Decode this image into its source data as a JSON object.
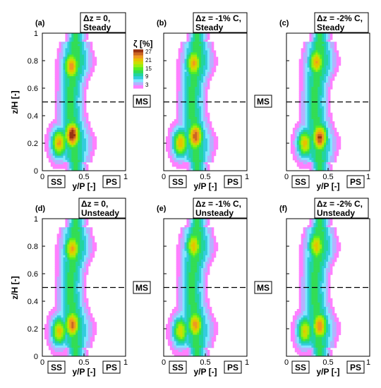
{
  "figure": {
    "y_axis_label": "z/H [-]",
    "x_axis_label": "y/P [-]",
    "ss_label": "SS",
    "ps_label": "PS",
    "ms_label": "MS"
  },
  "colorbar": {
    "title": "ζ [%]",
    "tick_labels": [
      "27",
      "21",
      "15",
      "9",
      "3"
    ]
  },
  "colors": {
    "levels": [
      "#ff80ff",
      "#b3b3ff",
      "#80e6ff",
      "#33ccdd",
      "#22d4a0",
      "#33dd55",
      "#55ee22",
      "#99ee11",
      "#ccdd00",
      "#e6c200",
      "#ee9922",
      "#cc6622",
      "#993311"
    ]
  },
  "chart_data": [
    {
      "type": "contour",
      "panel_label": "(a)",
      "title_line1": "Δz = 0,",
      "title_line2": "Steady",
      "x_ticks": [
        "0",
        "0.5",
        "1"
      ],
      "y_ticks": [
        "0",
        "0.2",
        "0.4",
        "0.6",
        "0.8",
        "1"
      ],
      "xlim": [
        0,
        1
      ],
      "ylim": [
        0,
        1
      ],
      "midspan_line_z": 0.5,
      "colorbar_range_percent": [
        0,
        30
      ],
      "peak_loss_regions": [
        {
          "y": 0.35,
          "z": 0.76,
          "zeta_percent": 22
        },
        {
          "y": 0.36,
          "z": 0.26,
          "zeta_percent": 28
        },
        {
          "y": 0.2,
          "z": 0.2,
          "zeta_percent": 23
        }
      ]
    },
    {
      "type": "contour",
      "panel_label": "(b)",
      "title_line1": "Δz = -1% C,",
      "title_line2": "Steady",
      "x_ticks": [
        "0",
        "0.5",
        "1"
      ],
      "y_ticks": [
        "0",
        "0.2",
        "0.4",
        "0.6",
        "0.8",
        "1"
      ],
      "xlim": [
        0,
        1
      ],
      "ylim": [
        0,
        1
      ],
      "midspan_line_z": 0.5,
      "colorbar_range_percent": [
        0,
        30
      ],
      "peak_loss_regions": [
        {
          "y": 0.36,
          "z": 0.78,
          "zeta_percent": 21
        },
        {
          "y": 0.38,
          "z": 0.25,
          "zeta_percent": 25
        },
        {
          "y": 0.2,
          "z": 0.2,
          "zeta_percent": 22
        }
      ]
    },
    {
      "type": "contour",
      "panel_label": "(c)",
      "title_line1": "Δz = -2% C,",
      "title_line2": "Steady",
      "x_ticks": [
        "0",
        "0.5",
        "1"
      ],
      "y_ticks": [
        "0",
        "0.2",
        "0.4",
        "0.6",
        "0.8",
        "1"
      ],
      "xlim": [
        0,
        1
      ],
      "ylim": [
        0,
        1
      ],
      "midspan_line_z": 0.5,
      "colorbar_range_percent": [
        0,
        30
      ],
      "peak_loss_regions": [
        {
          "y": 0.36,
          "z": 0.79,
          "zeta_percent": 21
        },
        {
          "y": 0.4,
          "z": 0.24,
          "zeta_percent": 26
        },
        {
          "y": 0.22,
          "z": 0.2,
          "zeta_percent": 21
        }
      ]
    },
    {
      "type": "contour",
      "panel_label": "(d)",
      "title_line1": "Δz = 0,",
      "title_line2": "Unsteady",
      "x_ticks": [
        "0",
        "0.5",
        "1"
      ],
      "y_ticks": [
        "0",
        "0.2",
        "0.4",
        "0.6",
        "0.8",
        "1"
      ],
      "xlim": [
        0,
        1
      ],
      "ylim": [
        0,
        1
      ],
      "midspan_line_z": 0.5,
      "colorbar_range_percent": [
        0,
        30
      ],
      "peak_loss_regions": [
        {
          "y": 0.36,
          "z": 0.78,
          "zeta_percent": 21
        },
        {
          "y": 0.36,
          "z": 0.23,
          "zeta_percent": 24
        },
        {
          "y": 0.2,
          "z": 0.18,
          "zeta_percent": 21
        }
      ]
    },
    {
      "type": "contour",
      "panel_label": "(e)",
      "title_line1": "Δz = -1% C,",
      "title_line2": "Unsteady",
      "x_ticks": [
        "0",
        "0.5",
        "1"
      ],
      "y_ticks": [
        "0",
        "0.2",
        "0.4",
        "0.6",
        "0.8",
        "1"
      ],
      "xlim": [
        0,
        1
      ],
      "ylim": [
        0,
        1
      ],
      "midspan_line_z": 0.5,
      "colorbar_range_percent": [
        0,
        30
      ],
      "peak_loss_regions": [
        {
          "y": 0.36,
          "z": 0.8,
          "zeta_percent": 20
        },
        {
          "y": 0.38,
          "z": 0.23,
          "zeta_percent": 22
        },
        {
          "y": 0.2,
          "z": 0.18,
          "zeta_percent": 20
        }
      ]
    },
    {
      "type": "contour",
      "panel_label": "(f)",
      "title_line1": "Δz = -2% C,",
      "title_line2": "Unsteady",
      "x_ticks": [
        "0",
        "0.5",
        "1"
      ],
      "y_ticks": [
        "0",
        "0.2",
        "0.4",
        "0.6",
        "0.8",
        "1"
      ],
      "xlim": [
        0,
        1
      ],
      "ylim": [
        0,
        1
      ],
      "midspan_line_z": 0.5,
      "colorbar_range_percent": [
        0,
        30
      ],
      "peak_loss_regions": [
        {
          "y": 0.36,
          "z": 0.8,
          "zeta_percent": 20
        },
        {
          "y": 0.4,
          "z": 0.22,
          "zeta_percent": 23
        },
        {
          "y": 0.22,
          "z": 0.18,
          "zeta_percent": 20
        }
      ]
    }
  ]
}
